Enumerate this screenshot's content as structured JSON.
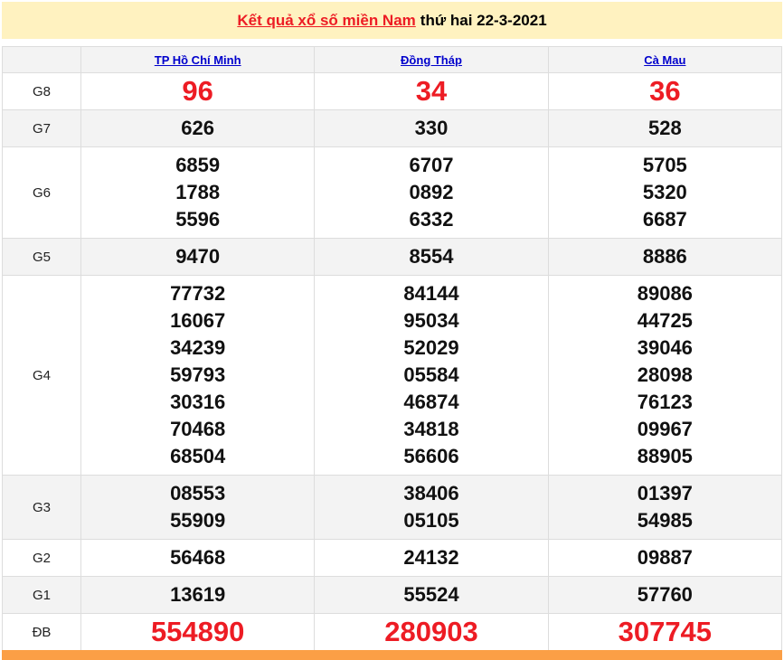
{
  "title": {
    "link": "Kết quả xổ số miền Nam",
    "date": "thứ hai 22-3-2021"
  },
  "provinces": [
    "TP Hồ Chí Minh",
    "Đồng Tháp",
    "Cà Mau"
  ],
  "colors": {
    "accent": "#ed1c24",
    "title_bg": "#fff2c0",
    "footer_bg": "#fb9f46",
    "link": "#0000cc"
  },
  "prizes": [
    {
      "label": "G8",
      "values": [
        [
          "96"
        ],
        [
          "34"
        ],
        [
          "36"
        ]
      ]
    },
    {
      "label": "G7",
      "values": [
        [
          "626"
        ],
        [
          "330"
        ],
        [
          "528"
        ]
      ]
    },
    {
      "label": "G6",
      "values": [
        [
          "6859",
          "1788",
          "5596"
        ],
        [
          "6707",
          "0892",
          "6332"
        ],
        [
          "5705",
          "5320",
          "6687"
        ]
      ]
    },
    {
      "label": "G5",
      "values": [
        [
          "9470"
        ],
        [
          "8554"
        ],
        [
          "8886"
        ]
      ]
    },
    {
      "label": "G4",
      "values": [
        [
          "77732",
          "16067",
          "34239",
          "59793",
          "30316",
          "70468",
          "68504"
        ],
        [
          "84144",
          "95034",
          "52029",
          "05584",
          "46874",
          "34818",
          "56606"
        ],
        [
          "89086",
          "44725",
          "39046",
          "28098",
          "76123",
          "09967",
          "88905"
        ]
      ]
    },
    {
      "label": "G3",
      "values": [
        [
          "08553",
          "55909"
        ],
        [
          "38406",
          "05105"
        ],
        [
          "01397",
          "54985"
        ]
      ]
    },
    {
      "label": "G2",
      "values": [
        [
          "56468"
        ],
        [
          "24132"
        ],
        [
          "09887"
        ]
      ]
    },
    {
      "label": "G1",
      "values": [
        [
          "13619"
        ],
        [
          "55524"
        ],
        [
          "57760"
        ]
      ]
    },
    {
      "label": "ĐB",
      "values": [
        [
          "554890"
        ],
        [
          "280903"
        ],
        [
          "307745"
        ]
      ]
    }
  ]
}
